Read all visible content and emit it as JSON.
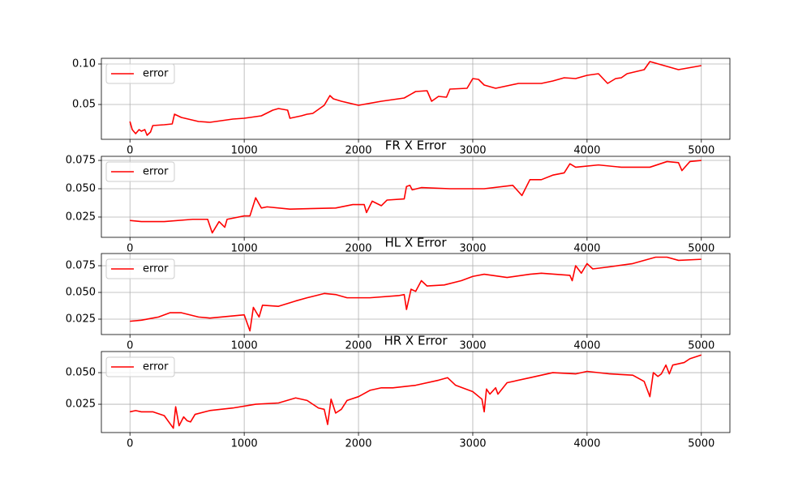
{
  "chart_data": [
    {
      "type": "line",
      "x": [
        0,
        20,
        50,
        80,
        100,
        130,
        150,
        180,
        200,
        300,
        370,
        390,
        450,
        600,
        700,
        900,
        1000,
        1150,
        1250,
        1300,
        1380,
        1400,
        1500,
        1550,
        1600,
        1700,
        1750,
        1780,
        1850,
        2000,
        2200,
        2300,
        2400,
        2500,
        2600,
        2640,
        2700,
        2770,
        2800,
        2950,
        3000,
        3050,
        3100,
        3200,
        3400,
        3600,
        3700,
        3800,
        3900,
        4000,
        4100,
        4180,
        4250,
        4300,
        4350,
        4500,
        4550,
        4650,
        4800,
        5000
      ],
      "series": [
        {
          "name": "error",
          "color": "#ff0000",
          "values": [
            0.029,
            0.019,
            0.014,
            0.019,
            0.017,
            0.019,
            0.012,
            0.016,
            0.024,
            0.025,
            0.026,
            0.038,
            0.034,
            0.029,
            0.028,
            0.032,
            0.033,
            0.036,
            0.043,
            0.045,
            0.043,
            0.033,
            0.036,
            0.038,
            0.039,
            0.049,
            0.061,
            0.057,
            0.054,
            0.049,
            0.054,
            0.056,
            0.058,
            0.066,
            0.067,
            0.054,
            0.06,
            0.059,
            0.069,
            0.07,
            0.082,
            0.081,
            0.074,
            0.07,
            0.076,
            0.076,
            0.079,
            0.083,
            0.082,
            0.086,
            0.088,
            0.076,
            0.082,
            0.083,
            0.088,
            0.093,
            0.103,
            0.099,
            0.093,
            0.098
          ]
        }
      ],
      "xlim": [
        -250,
        5250
      ],
      "xticks": [
        0,
        1000,
        2000,
        3000,
        4000,
        5000
      ],
      "ylim": [
        0.007,
        0.107
      ],
      "yticks": [
        0.05,
        {
          "value": 0.1,
          "label": "0.10"
        }
      ],
      "grid": true,
      "legend": "upper left"
    },
    {
      "type": "line",
      "title": "FR X Error",
      "x": [
        0,
        100,
        300,
        550,
        680,
        720,
        780,
        830,
        850,
        900,
        1000,
        1050,
        1100,
        1150,
        1200,
        1400,
        1800,
        1950,
        2050,
        2070,
        2120,
        2200,
        2250,
        2400,
        2420,
        2450,
        2470,
        2550,
        2800,
        3100,
        3350,
        3430,
        3500,
        3600,
        3700,
        3800,
        3850,
        3900,
        4100,
        4300,
        4550,
        4700,
        4800,
        4830,
        4900,
        5000
      ],
      "series": [
        {
          "name": "error",
          "color": "#ff0000",
          "values": [
            0.022,
            0.021,
            0.021,
            0.023,
            0.023,
            0.011,
            0.021,
            0.016,
            0.023,
            0.024,
            0.026,
            0.026,
            0.042,
            0.033,
            0.034,
            0.032,
            0.033,
            0.036,
            0.036,
            0.029,
            0.039,
            0.035,
            0.04,
            0.041,
            0.052,
            0.053,
            0.049,
            0.051,
            0.05,
            0.05,
            0.053,
            0.044,
            0.058,
            0.058,
            0.062,
            0.064,
            0.072,
            0.069,
            0.071,
            0.069,
            0.069,
            0.074,
            0.073,
            0.066,
            0.074,
            0.075
          ]
        }
      ],
      "xlim": [
        -250,
        5250
      ],
      "xticks": [
        0,
        1000,
        2000,
        3000,
        4000,
        5000
      ],
      "ylim": [
        0.0071,
        0.0786
      ],
      "yticks": [
        0.025,
        {
          "value": 0.05,
          "label": "0.050"
        },
        0.075
      ],
      "grid": true,
      "legend": "upper left"
    },
    {
      "type": "line",
      "title": "HL X Error",
      "x": [
        0,
        100,
        200,
        250,
        350,
        450,
        600,
        700,
        1000,
        1050,
        1080,
        1130,
        1160,
        1300,
        1450,
        1550,
        1700,
        1800,
        1900,
        2100,
        2350,
        2400,
        2420,
        2460,
        2500,
        2550,
        2600,
        2750,
        2900,
        3000,
        3100,
        3300,
        3500,
        3600,
        3850,
        3870,
        3900,
        3950,
        4000,
        4050,
        4200,
        4400,
        4600,
        4700,
        4800,
        5000
      ],
      "series": [
        {
          "name": "error",
          "color": "#ff0000",
          "values": [
            0.023,
            0.024,
            0.026,
            0.027,
            0.031,
            0.031,
            0.027,
            0.026,
            0.029,
            0.014,
            0.036,
            0.027,
            0.038,
            0.037,
            0.042,
            0.045,
            0.049,
            0.048,
            0.045,
            0.045,
            0.047,
            0.048,
            0.034,
            0.053,
            0.051,
            0.061,
            0.056,
            0.057,
            0.061,
            0.065,
            0.067,
            0.064,
            0.067,
            0.068,
            0.066,
            0.061,
            0.075,
            0.068,
            0.077,
            0.072,
            0.074,
            0.077,
            0.083,
            0.083,
            0.08,
            0.081
          ]
        }
      ],
      "xlim": [
        -250,
        5250
      ],
      "xticks": [
        0,
        1000,
        2000,
        3000,
        4000,
        5000
      ],
      "ylim": [
        0.0106,
        0.0864
      ],
      "yticks": [
        0.025,
        {
          "value": 0.05,
          "label": "0.050"
        },
        0.075
      ],
      "grid": true,
      "legend": "upper left"
    },
    {
      "type": "line",
      "title": "HR X Error",
      "x": [
        0,
        50,
        100,
        200,
        300,
        380,
        400,
        430,
        470,
        500,
        530,
        570,
        700,
        900,
        1100,
        1300,
        1450,
        1550,
        1650,
        1700,
        1730,
        1760,
        1800,
        1850,
        1900,
        2000,
        2100,
        2200,
        2300,
        2500,
        2700,
        2780,
        2850,
        3000,
        3080,
        3100,
        3120,
        3150,
        3200,
        3220,
        3300,
        3500,
        3700,
        3900,
        4000,
        4200,
        4400,
        4500,
        4550,
        4580,
        4620,
        4650,
        4690,
        4720,
        4750,
        4850,
        4900,
        5000
      ],
      "series": [
        {
          "name": "error",
          "color": "#ff0000",
          "values": [
            0.019,
            0.02,
            0.019,
            0.019,
            0.016,
            0.006,
            0.023,
            0.008,
            0.015,
            0.012,
            0.011,
            0.017,
            0.02,
            0.022,
            0.025,
            0.026,
            0.03,
            0.028,
            0.022,
            0.021,
            0.009,
            0.029,
            0.018,
            0.021,
            0.028,
            0.031,
            0.036,
            0.038,
            0.038,
            0.04,
            0.044,
            0.046,
            0.04,
            0.035,
            0.029,
            0.019,
            0.037,
            0.033,
            0.038,
            0.033,
            0.042,
            0.046,
            0.05,
            0.049,
            0.051,
            0.049,
            0.048,
            0.043,
            0.031,
            0.05,
            0.047,
            0.049,
            0.056,
            0.049,
            0.056,
            0.058,
            0.061,
            0.064
          ]
        }
      ],
      "xlim": [
        -250,
        5250
      ],
      "xticks": [
        0,
        1000,
        2000,
        3000,
        4000,
        5000
      ],
      "ylim": [
        0.0026,
        0.0667
      ],
      "yticks": [
        0.025,
        {
          "value": 0.05,
          "label": "0.050"
        }
      ],
      "grid": true,
      "legend": "upper left"
    }
  ]
}
